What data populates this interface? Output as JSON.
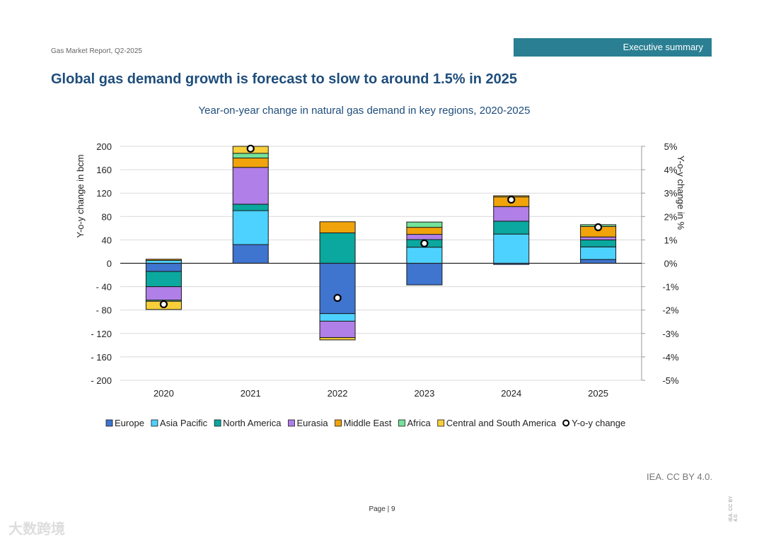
{
  "header": {
    "report": "Gas Market Report, Q2-2025",
    "section": "Executive summary"
  },
  "page_title": "Global gas demand growth is forecast to slow to around 1.5% in 2025",
  "footer": {
    "credit": "IEA. CC BY 4.0.",
    "page_label": "Page | 9",
    "side_credit": "IEA. CC BY 4.0.",
    "watermark": "大数跨境"
  },
  "chart_data": {
    "type": "bar",
    "stacked": true,
    "title": "Year-on-year change in natural gas demand in key regions, 2020-2025",
    "ylabel": "Y-o-y change in bcm",
    "y2label": "Y-o-y change in %",
    "ylim": [
      -200,
      200
    ],
    "y2lim": [
      -5,
      5
    ],
    "yticks": [
      "200",
      "160",
      "120",
      "80",
      "40",
      "0",
      "- 40",
      "- 80",
      "- 120",
      "- 160",
      "- 200"
    ],
    "y2ticks": [
      "5%",
      "4%",
      "3%",
      "2%",
      "1%",
      "0%",
      "-1%",
      "-2%",
      "-3%",
      "-4%",
      "-5%"
    ],
    "categories": [
      "2020",
      "2021",
      "2022",
      "2023",
      "2024",
      "2025"
    ],
    "grid": true,
    "legend_position": "bottom",
    "series": [
      {
        "name": "Europe",
        "color": "#3f74cf",
        "values": [
          -14,
          32,
          -86,
          -37,
          -2,
          6.5
        ]
      },
      {
        "name": "Asia Pacific",
        "color": "#4dd2ff",
        "values": [
          5,
          58,
          -13,
          27.5,
          50,
          21.5
        ]
      },
      {
        "name": "North America",
        "color": "#0aa89e",
        "values": [
          -26,
          11,
          52,
          13,
          22,
          12
        ]
      },
      {
        "name": "Eurasia",
        "color": "#b07fe8",
        "values": [
          -23,
          63,
          -28,
          9,
          25,
          5
        ]
      },
      {
        "name": "Middle East",
        "color": "#f0a30a",
        "values": [
          2,
          16,
          19,
          12,
          16.5,
          18
        ]
      },
      {
        "name": "Africa",
        "color": "#74e39a",
        "values": [
          -2,
          8,
          0,
          9,
          0,
          3
        ]
      },
      {
        "name": "Central and South America",
        "color": "#f7cf3a",
        "values": [
          -14,
          12,
          -4,
          0,
          2,
          0
        ]
      }
    ],
    "line_series": {
      "name": "Y-o-y change",
      "axis": "right",
      "unit": "%",
      "values": [
        -1.75,
        4.9,
        -1.48,
        0.85,
        2.72,
        1.54
      ]
    }
  }
}
